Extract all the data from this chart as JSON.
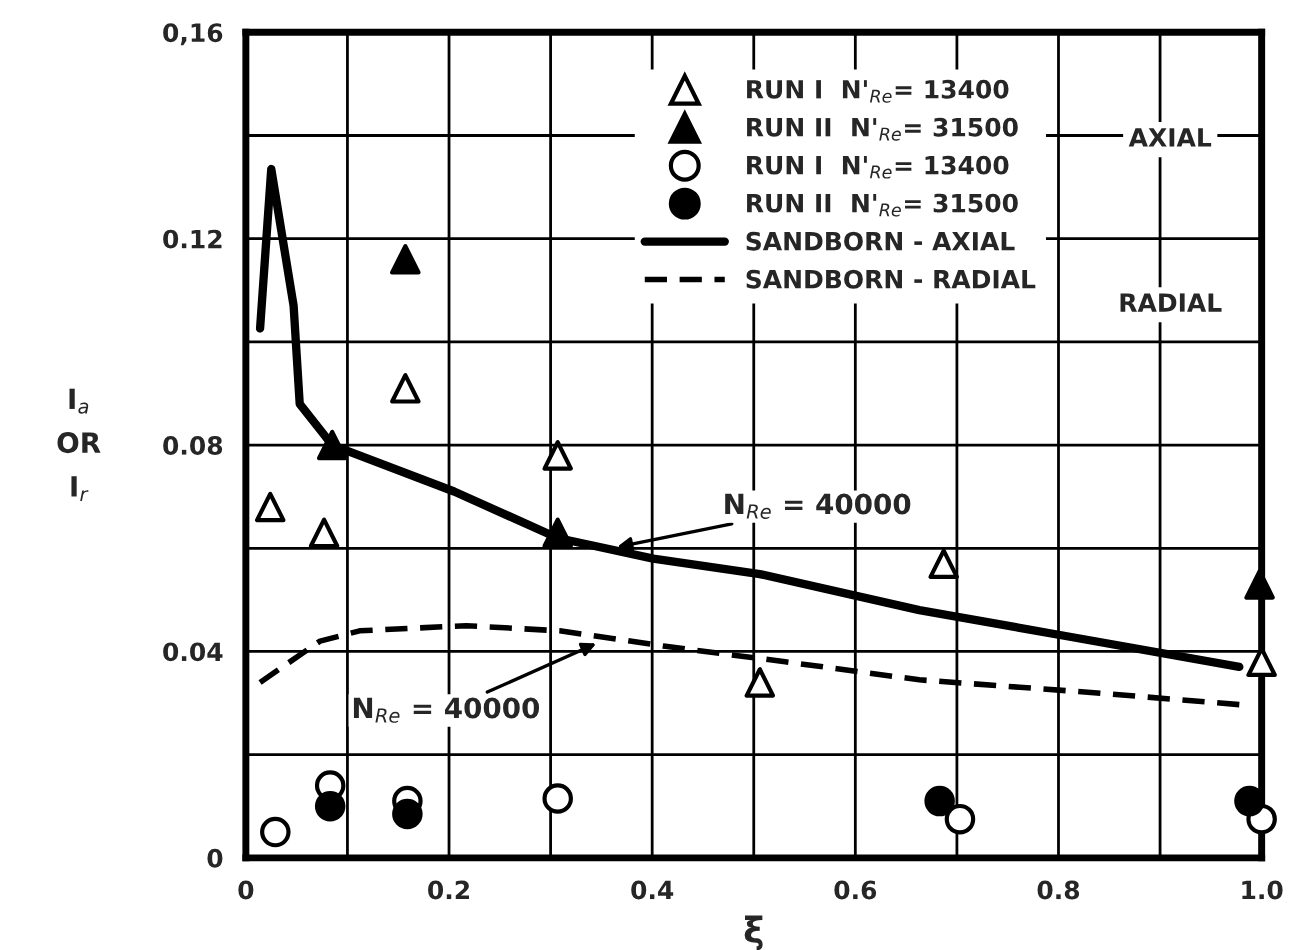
{
  "chart_data": {
    "type": "scatter",
    "xlabel": "ξ",
    "ylabel": "I$_{a}$\nOR\nI$_{r}$",
    "xlim": [
      0,
      1.0
    ],
    "ylim": [
      0,
      0.16
    ],
    "xticks": [
      0,
      {
        "value": 0.1,
        "label": null
      },
      0.2,
      {
        "value": 0.3,
        "label": null
      },
      0.4,
      {
        "value": 0.5,
        "label": null
      },
      0.6,
      {
        "value": 0.7,
        "label": null
      },
      0.8,
      {
        "value": 0.9,
        "label": null
      },
      {
        "value": 1.0,
        "label": "1.0"
      }
    ],
    "yticks": [
      0,
      {
        "value": 0.02,
        "label": null
      },
      0.04,
      {
        "value": 0.06,
        "label": null
      },
      0.08,
      {
        "value": 0.1,
        "label": null
      },
      0.12,
      {
        "value": 0.14,
        "label": null
      },
      {
        "value": 0.16,
        "label": "0,16"
      }
    ],
    "grid": true,
    "legend": "top right",
    "series": [
      {
        "name": "RUN I  N'$_{Re}$= 13400",
        "marker": "triangle",
        "color": "#ffffff",
        "x": [
          0.024,
          0.077,
          0.157,
          0.307,
          0.506,
          0.687,
          1.0
        ],
        "values": [
          0.068,
          0.063,
          0.091,
          0.078,
          0.034,
          0.057,
          0.038
        ]
      },
      {
        "name": "RUN II  N'$_{Re}$= 31500",
        "marker": "triangle",
        "color": "#000000",
        "x": [
          0.085,
          0.157,
          0.307,
          0.998
        ],
        "values": [
          0.08,
          0.116,
          0.063,
          0.053
        ]
      },
      {
        "name": "RUN I  N'$_{Re}$= 13400",
        "marker": "circle",
        "color": "#ffffff",
        "x": [
          0.029,
          0.083,
          0.159,
          0.307,
          0.703,
          1.0
        ],
        "values": [
          0.005,
          0.014,
          0.011,
          0.0115,
          0.0075,
          0.0075
        ]
      },
      {
        "name": "RUN II  N'$_{Re}$= 31500",
        "marker": "circle",
        "color": "#000000",
        "x": [
          0.083,
          0.159,
          0.683,
          0.988
        ],
        "values": [
          0.01,
          0.0085,
          0.011,
          0.011
        ]
      },
      {
        "name": "SANDBORN - AXIAL",
        "type": "line",
        "line_style": "solid",
        "color": "#000000",
        "x": [
          0.014,
          0.025,
          0.047,
          0.053,
          0.077,
          0.085,
          0.205,
          0.307,
          0.401,
          0.506,
          0.663,
          0.807,
          0.978
        ],
        "values": [
          0.1026,
          0.1335,
          0.107,
          0.088,
          0.082,
          0.08,
          0.071,
          0.062,
          0.058,
          0.055,
          0.048,
          0.043,
          0.037
        ]
      },
      {
        "name": "SANDBORN - RADIAL",
        "type": "line",
        "line_style": "dashed",
        "color": "#000000",
        "x": [
          0.014,
          0.073,
          0.112,
          0.217,
          0.309,
          0.413,
          0.531,
          0.663,
          0.835,
          0.978
        ],
        "values": [
          0.034,
          0.042,
          0.044,
          0.045,
          0.044,
          0.041,
          0.038,
          0.0345,
          0.032,
          0.0297
        ]
      }
    ],
    "annotations": [
      {
        "text": "N$_{Re}$ = 40000",
        "x": 0.36,
        "y": 0.06
      },
      {
        "text": "N$_{Re}$ = 40000",
        "x": 0.35,
        "y": 0.042
      },
      "AXIAL",
      "RADIAL"
    ]
  }
}
